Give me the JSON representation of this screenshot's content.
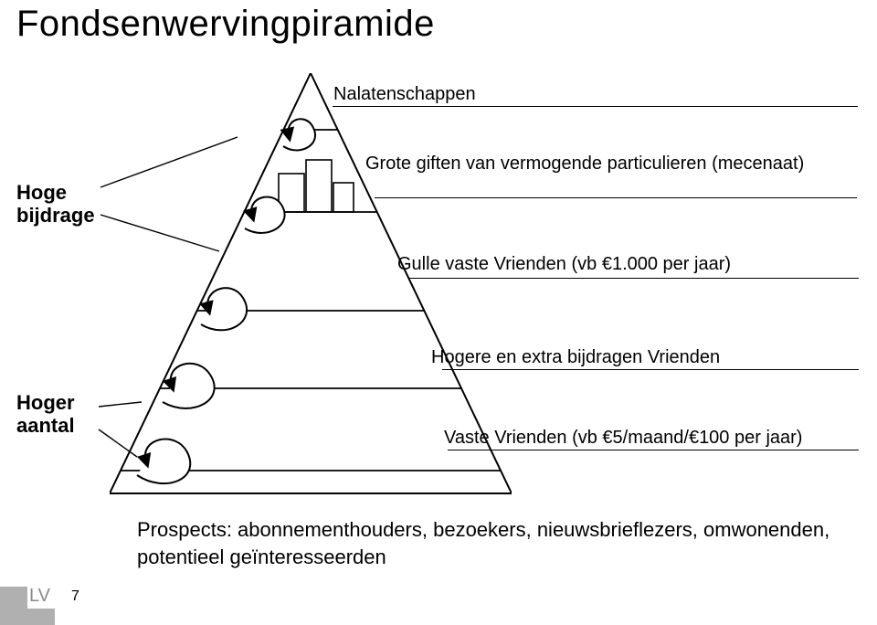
{
  "title": "Fondsenwervingpiramide",
  "leftLabels": {
    "hoge": "Hoge\nbijdrage",
    "hoger": "Hoger\naantal"
  },
  "levels": [
    {
      "label": "Nalatenschappen"
    },
    {
      "label": "Grote giften van vermogende particulieren (mecenaat)"
    },
    {
      "label": "Gulle vaste Vrienden (vb €1.000 per jaar)"
    },
    {
      "label": "Hogere en extra bijdragen Vrienden"
    },
    {
      "label": "Vaste Vrienden (vb €5/maand/€100 per jaar)"
    }
  ],
  "prospects": "Prospects: abonnementhouders, bezoekers, nieuwsbrieflezers, omwonenden, potentieel geïnteresseerden",
  "footer": {
    "lv": "LV",
    "page": "7"
  },
  "style": {
    "background": "#ffffff",
    "stroke": "#000000",
    "strokeWidth": 2,
    "spiralFill": "#ffffff",
    "title_fontsize": 40,
    "label_fontsize": 20,
    "leftlabel_fontsize": 22,
    "prospects_fontsize": 22,
    "footer_gray": "#b0b0b0",
    "footer_text_gray": "#8a8a8a",
    "pyramid": {
      "apex": [
        220,
        0
      ],
      "baseLeft": [
        0,
        460
      ],
      "baseRight": [
        440,
        460
      ],
      "hCuts": [
        62,
        152,
        260,
        345,
        435
      ]
    }
  }
}
